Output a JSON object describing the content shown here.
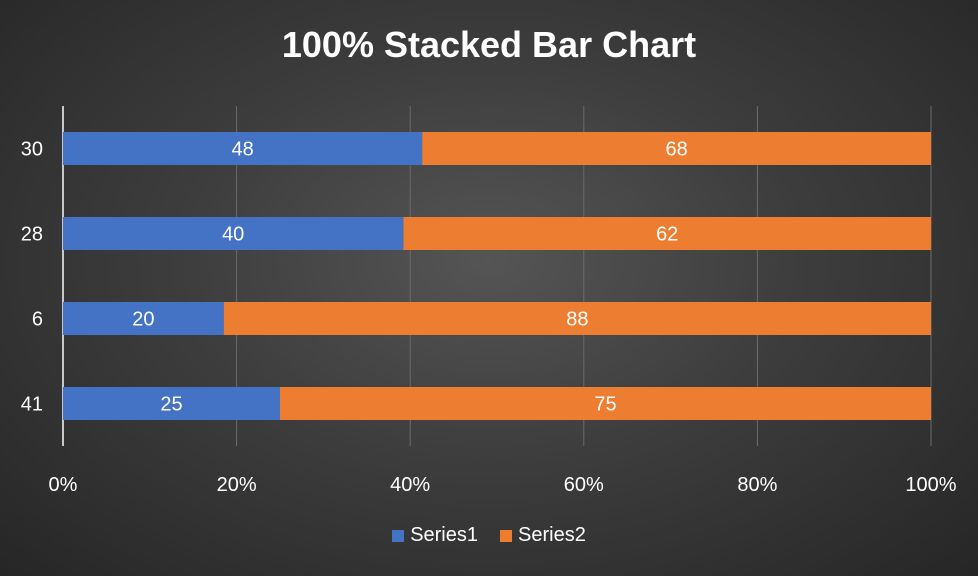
{
  "chart_data": {
    "type": "bar",
    "orientation": "horizontal",
    "stacking": "percent",
    "title": "100% Stacked Bar Chart",
    "categories": [
      "41",
      "6",
      "28",
      "30"
    ],
    "series": [
      {
        "name": "Series1",
        "color": "#4472c4",
        "values": [
          25,
          20,
          40,
          48
        ]
      },
      {
        "name": "Series2",
        "color": "#ed7d31",
        "values": [
          75,
          88,
          62,
          68
        ]
      }
    ],
    "xticks": [
      "0%",
      "20%",
      "40%",
      "60%",
      "80%",
      "100%"
    ],
    "xlim": [
      0,
      100
    ],
    "grid": "vertical",
    "legend": "bottom",
    "data_labels": true
  },
  "colors": {
    "text": "#ffffff",
    "grid": "#6b6b6b",
    "axis": "#c8c8c8"
  }
}
